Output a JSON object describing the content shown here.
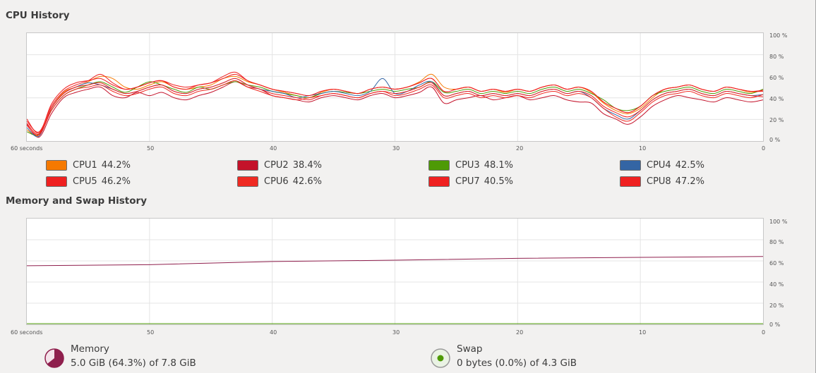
{
  "cpu_section": {
    "title": "CPU History",
    "y_ticks": [
      "100 %",
      "80 %",
      "60 %",
      "40 %",
      "20 %",
      "0 %"
    ],
    "x_ticks": [
      "60 seconds",
      "50",
      "40",
      "30",
      "20",
      "10",
      "0"
    ],
    "legend": [
      {
        "name": "CPU1",
        "value": "44.2%",
        "color": "#f57900"
      },
      {
        "name": "CPU2",
        "value": "38.4%",
        "color": "#c4122a"
      },
      {
        "name": "CPU3",
        "value": "48.1%",
        "color": "#4e9a06"
      },
      {
        "name": "CPU4",
        "value": "42.5%",
        "color": "#3465a4"
      },
      {
        "name": "CPU5",
        "value": "46.2%",
        "color": "#ef2020"
      },
      {
        "name": "CPU6",
        "value": "42.6%",
        "color": "#ef2a22"
      },
      {
        "name": "CPU7",
        "value": "40.5%",
        "color": "#ef2020"
      },
      {
        "name": "CPU8",
        "value": "47.2%",
        "color": "#ef2020"
      }
    ]
  },
  "memory_section": {
    "title": "Memory and Swap History",
    "y_ticks": [
      "100 %",
      "80 %",
      "60 %",
      "40 %",
      "20 %",
      "0 %"
    ],
    "x_ticks": [
      "60 seconds",
      "50",
      "40",
      "30",
      "20",
      "10",
      "0"
    ],
    "memory": {
      "label": "Memory",
      "detail": "5.0 GiB (64.3%) of 7.8 GiB",
      "color": "#8f1f4d",
      "fraction": 0.643
    },
    "swap": {
      "label": "Swap",
      "detail": "0 bytes (0.0%) of 4.3 GiB",
      "color": "#4e9a06",
      "fraction": 0.0
    }
  },
  "chart_data": [
    {
      "type": "line",
      "title": "CPU History",
      "xlabel": "",
      "ylabel": "",
      "xlim": [
        60,
        0
      ],
      "ylim": [
        0,
        100
      ],
      "x": [
        60,
        59,
        58,
        57,
        56,
        55,
        54,
        53,
        52,
        51,
        50,
        49,
        48,
        47,
        46,
        45,
        44,
        43,
        42,
        41,
        40,
        39,
        38,
        37,
        36,
        35,
        34,
        33,
        32,
        31,
        30,
        29,
        28,
        27,
        26,
        25,
        24,
        23,
        22,
        21,
        20,
        19,
        18,
        17,
        16,
        15,
        14,
        13,
        12,
        11,
        10,
        9,
        8,
        7,
        6,
        5,
        4,
        3,
        2,
        1,
        0
      ],
      "series": [
        {
          "name": "CPU1",
          "values": [
            10,
            5,
            30,
            45,
            50,
            55,
            60,
            58,
            50,
            48,
            52,
            55,
            50,
            48,
            50,
            52,
            58,
            60,
            55,
            52,
            48,
            45,
            42,
            40,
            45,
            48,
            46,
            44,
            48,
            50,
            48,
            50,
            55,
            62,
            50,
            48,
            50,
            46,
            48,
            45,
            48,
            46,
            50,
            52,
            48,
            50,
            45,
            35,
            28,
            25,
            30,
            40,
            48,
            50,
            52,
            48,
            46,
            50,
            48,
            45,
            47
          ]
        },
        {
          "name": "CPU2",
          "values": [
            15,
            3,
            25,
            40,
            45,
            48,
            50,
            42,
            40,
            45,
            42,
            45,
            40,
            38,
            42,
            45,
            50,
            55,
            50,
            48,
            42,
            40,
            38,
            36,
            40,
            42,
            40,
            38,
            42,
            44,
            40,
            42,
            45,
            50,
            35,
            38,
            40,
            42,
            38,
            40,
            42,
            38,
            40,
            42,
            38,
            36,
            35,
            25,
            20,
            15,
            22,
            32,
            38,
            42,
            40,
            38,
            36,
            40,
            38,
            36,
            38
          ]
        },
        {
          "name": "CPU3",
          "values": [
            8,
            6,
            28,
            42,
            48,
            52,
            55,
            50,
            45,
            50,
            55,
            52,
            48,
            45,
            50,
            48,
            52,
            55,
            52,
            50,
            46,
            44,
            42,
            40,
            44,
            46,
            45,
            44,
            46,
            48,
            46,
            48,
            50,
            55,
            45,
            46,
            48,
            44,
            46,
            44,
            46,
            44,
            48,
            50,
            46,
            48,
            44,
            38,
            30,
            28,
            32,
            42,
            46,
            48,
            50,
            46,
            44,
            48,
            46,
            44,
            48
          ]
        },
        {
          "name": "CPU4",
          "values": [
            12,
            4,
            30,
            44,
            50,
            54,
            52,
            48,
            44,
            46,
            50,
            52,
            46,
            44,
            48,
            50,
            54,
            58,
            52,
            48,
            46,
            44,
            40,
            42,
            44,
            46,
            44,
            42,
            46,
            58,
            44,
            46,
            52,
            55,
            42,
            44,
            46,
            42,
            44,
            42,
            44,
            42,
            46,
            48,
            44,
            46,
            40,
            30,
            24,
            20,
            28,
            38,
            44,
            46,
            48,
            44,
            42,
            46,
            44,
            42,
            43
          ]
        },
        {
          "name": "CPU5",
          "values": [
            18,
            8,
            32,
            46,
            52,
            56,
            62,
            54,
            48,
            50,
            54,
            56,
            52,
            50,
            52,
            54,
            60,
            64,
            56,
            52,
            48,
            46,
            44,
            42,
            46,
            48,
            46,
            44,
            48,
            50,
            48,
            50,
            54,
            58,
            46,
            48,
            50,
            46,
            48,
            46,
            48,
            46,
            50,
            52,
            48,
            50,
            46,
            36,
            30,
            26,
            32,
            42,
            48,
            50,
            52,
            48,
            46,
            50,
            48,
            46,
            46
          ]
        },
        {
          "name": "CPU6",
          "values": [
            14,
            5,
            28,
            42,
            48,
            50,
            52,
            46,
            42,
            44,
            48,
            50,
            44,
            42,
            46,
            48,
            52,
            56,
            50,
            46,
            42,
            40,
            38,
            40,
            42,
            44,
            42,
            40,
            44,
            46,
            42,
            44,
            48,
            52,
            40,
            42,
            44,
            40,
            42,
            40,
            42,
            40,
            44,
            46,
            42,
            44,
            40,
            30,
            22,
            18,
            26,
            36,
            42,
            44,
            46,
            42,
            40,
            44,
            42,
            40,
            43
          ]
        },
        {
          "name": "CPU7",
          "values": [
            16,
            6,
            30,
            44,
            50,
            52,
            54,
            48,
            44,
            46,
            50,
            52,
            46,
            44,
            48,
            50,
            54,
            58,
            52,
            48,
            44,
            42,
            40,
            38,
            42,
            44,
            42,
            40,
            44,
            46,
            44,
            46,
            50,
            54,
            42,
            44,
            46,
            42,
            44,
            42,
            44,
            42,
            46,
            48,
            44,
            46,
            42,
            32,
            26,
            22,
            28,
            38,
            44,
            46,
            48,
            44,
            42,
            46,
            44,
            42,
            41
          ]
        },
        {
          "name": "CPU8",
          "values": [
            20,
            7,
            34,
            48,
            54,
            56,
            58,
            52,
            48,
            50,
            54,
            56,
            50,
            48,
            52,
            54,
            58,
            62,
            56,
            52,
            48,
            46,
            44,
            42,
            46,
            48,
            46,
            44,
            48,
            50,
            48,
            50,
            54,
            58,
            46,
            48,
            50,
            46,
            48,
            46,
            48,
            46,
            50,
            52,
            48,
            50,
            46,
            36,
            30,
            26,
            32,
            42,
            48,
            50,
            52,
            48,
            46,
            50,
            48,
            46,
            47
          ]
        }
      ]
    },
    {
      "type": "line",
      "title": "Memory and Swap History",
      "xlabel": "",
      "ylabel": "",
      "xlim": [
        60,
        0
      ],
      "ylim": [
        0,
        100
      ],
      "x": [
        60,
        50,
        40,
        30,
        20,
        10,
        0
      ],
      "series": [
        {
          "name": "Memory",
          "values": [
            55.5,
            56.5,
            59.5,
            60.8,
            62.6,
            63.5,
            64.3
          ]
        },
        {
          "name": "Swap",
          "values": [
            0,
            0,
            0,
            0,
            0,
            0,
            0
          ]
        }
      ]
    }
  ]
}
